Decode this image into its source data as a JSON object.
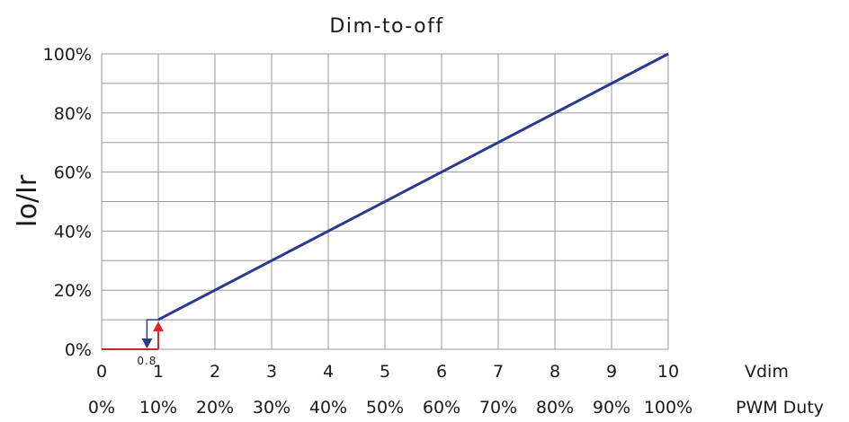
{
  "chart_data": {
    "type": "line",
    "title": "Dim-to-off",
    "ylabel": "Io/Ir",
    "xlabel_primary": "Vdim",
    "xlabel_secondary": "PWM Duty",
    "xlim": [
      0,
      10
    ],
    "ylim": [
      0,
      100
    ],
    "grid": true,
    "x_ticks": [
      "0",
      "1",
      "2",
      "3",
      "4",
      "5",
      "6",
      "7",
      "8",
      "9",
      "10"
    ],
    "x_ticks_secondary": [
      "0%",
      "10%",
      "20%",
      "30%",
      "40%",
      "50%",
      "60%",
      "70%",
      "80%",
      "90%",
      "100%"
    ],
    "y_ticks": [
      "0%",
      "20%",
      "40%",
      "60%",
      "80%",
      "100%"
    ],
    "y_tick_values": [
      0,
      20,
      40,
      60,
      80,
      100
    ],
    "series": [
      {
        "color": "#2b3990",
        "points": [
          [
            1,
            10
          ],
          [
            10,
            100
          ]
        ]
      }
    ],
    "off_segment": {
      "color": "#c1272d",
      "points": [
        [
          0,
          0
        ],
        [
          1,
          0
        ]
      ]
    },
    "hysteresis": {
      "turn_on_x": 1,
      "turn_off_x": 0.8,
      "turn_off_label": "0.8",
      "level": 10,
      "up_arrow_color": "#e0242b",
      "down_arrow_color": "#2b3990"
    }
  }
}
